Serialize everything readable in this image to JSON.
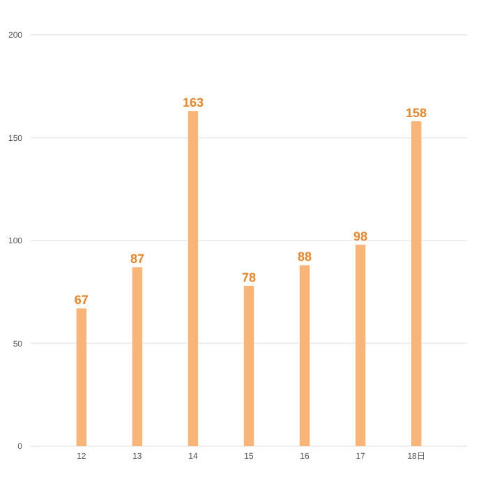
{
  "chart_data": {
    "type": "bar",
    "categories": [
      "12",
      "13",
      "14",
      "15",
      "16",
      "17",
      "18日"
    ],
    "values": [
      67,
      87,
      163,
      78,
      88,
      98,
      158
    ],
    "color": "#f9b577",
    "ylim": [
      0,
      200
    ],
    "yticks": [
      0,
      50,
      100,
      150,
      200
    ],
    "grid": "y",
    "data_labels": true
  }
}
